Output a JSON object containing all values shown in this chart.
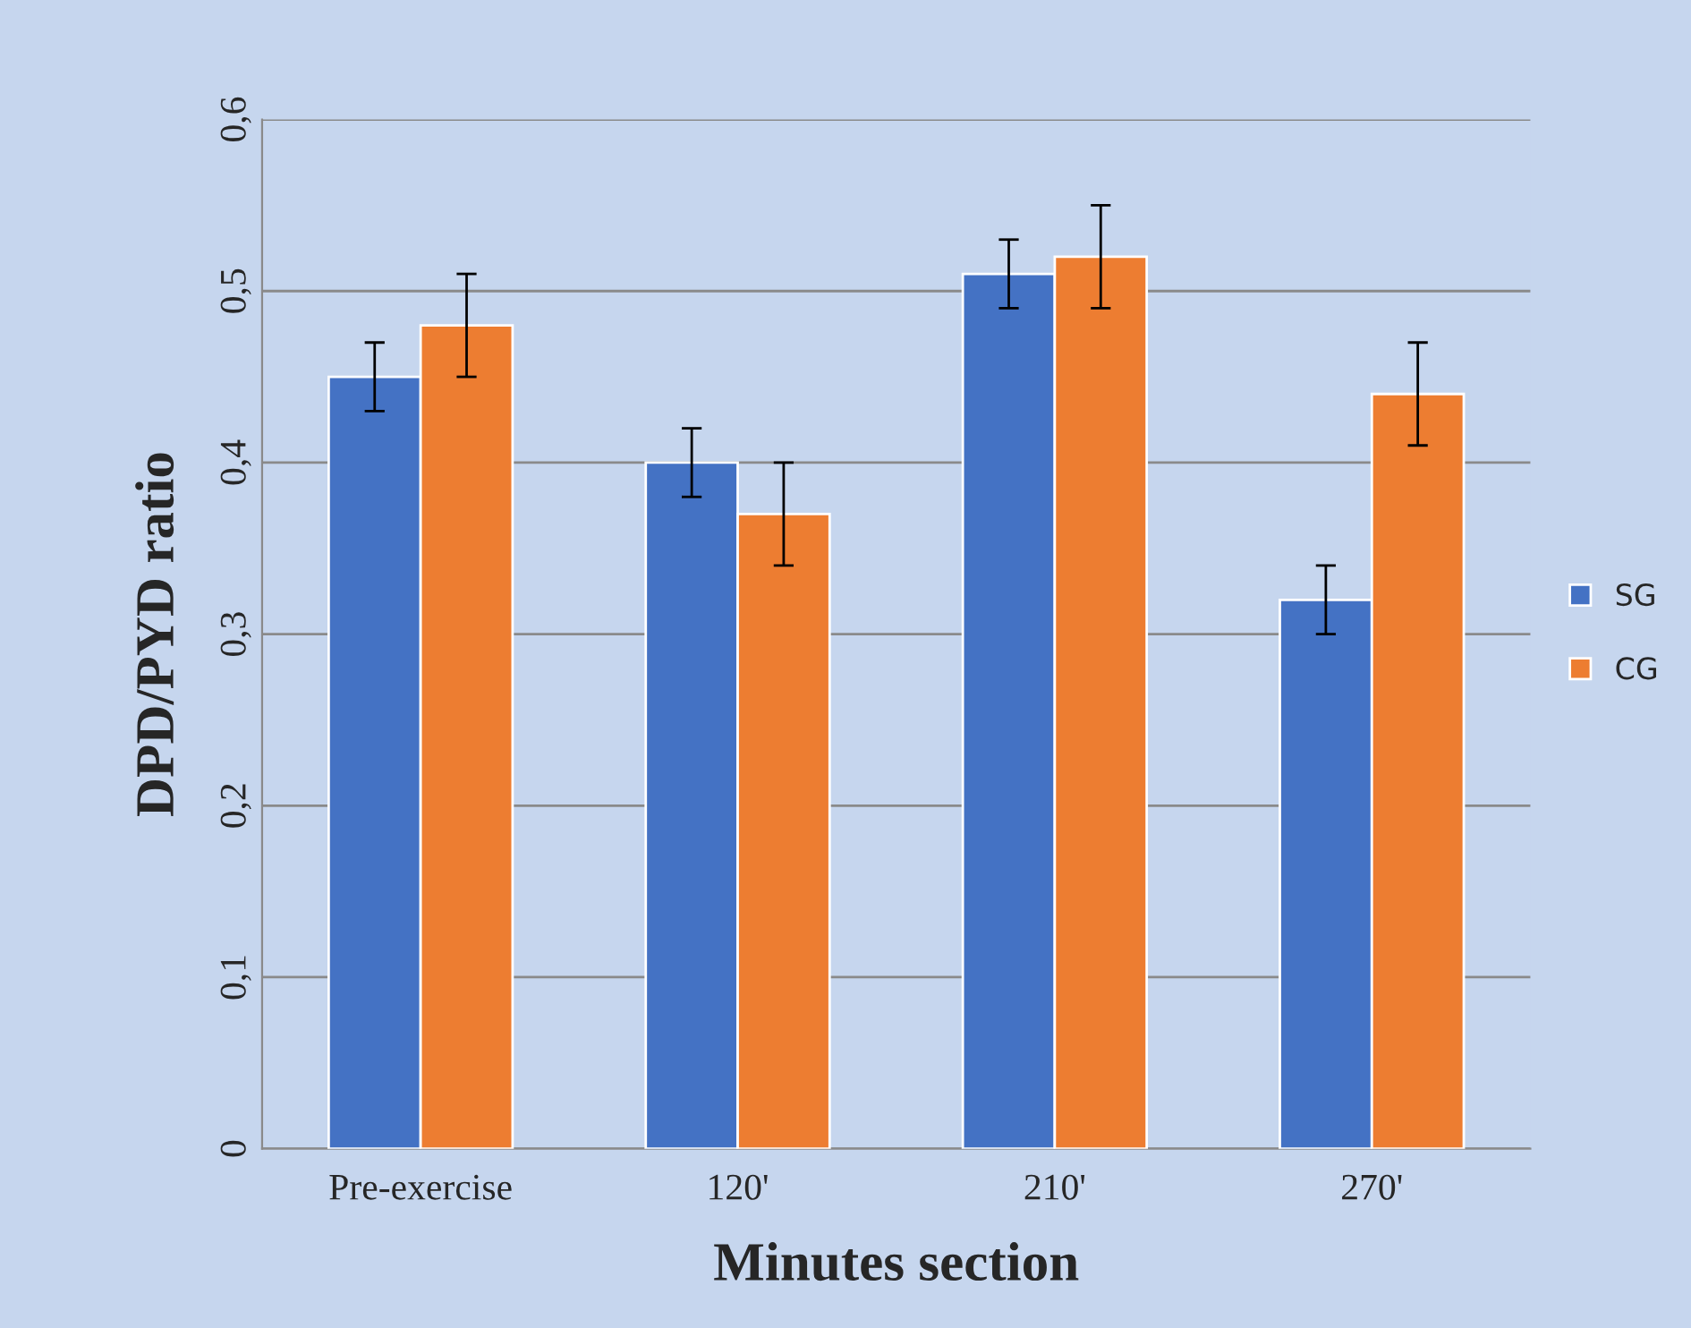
{
  "chart_data": {
    "type": "bar",
    "xlabel": "Minutes section",
    "ylabel": "DPD/PYD ratio",
    "categories": [
      "Pre-exercise",
      "120'",
      "210'",
      "270'"
    ],
    "series": [
      {
        "name": "SG",
        "color": "#4472c4",
        "values": [
          0.45,
          0.4,
          0.51,
          0.32
        ],
        "errors": [
          0.02,
          0.02,
          0.02,
          0.02
        ]
      },
      {
        "name": "CG",
        "color": "#ed7d31",
        "values": [
          0.48,
          0.37,
          0.52,
          0.44
        ],
        "errors": [
          0.03,
          0.03,
          0.03,
          0.03
        ]
      }
    ],
    "ylim": [
      0,
      0.6
    ],
    "yticks": [
      {
        "value": 0,
        "label": "0"
      },
      {
        "value": 0.1,
        "label": "0,1"
      },
      {
        "value": 0.2,
        "label": "0,2"
      },
      {
        "value": 0.3,
        "label": "0,3"
      },
      {
        "value": 0.4,
        "label": "0,4"
      },
      {
        "value": 0.5,
        "label": "0,5"
      },
      {
        "value": 0.6,
        "label": "0,6"
      }
    ],
    "grid": "y",
    "legend": "right"
  }
}
